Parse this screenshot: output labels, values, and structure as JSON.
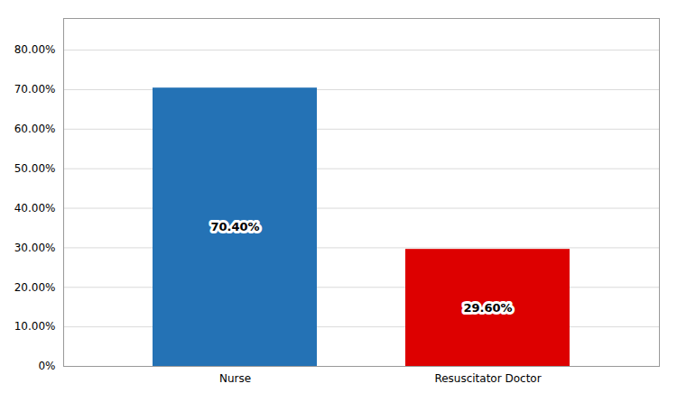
{
  "chart_data": {
    "type": "bar",
    "categories": [
      "Nurse",
      "Resuscitator Doctor"
    ],
    "values": [
      70.4,
      29.6
    ],
    "value_labels": [
      "70.40%",
      "29.60%"
    ],
    "colors": [
      "#2472B5",
      "#DD0000"
    ],
    "ylim": [
      0,
      88
    ],
    "yticks": [
      {
        "value": 0,
        "label": "0%"
      },
      {
        "value": 10,
        "label": "10.00%"
      },
      {
        "value": 20,
        "label": "20.00%"
      },
      {
        "value": 30,
        "label": "30.00%"
      },
      {
        "value": 40,
        "label": "40.00%"
      },
      {
        "value": 50,
        "label": "50.00%"
      },
      {
        "value": 60,
        "label": "60.00%"
      },
      {
        "value": 70,
        "label": "70.00%"
      },
      {
        "value": 80,
        "label": "80.00%"
      }
    ],
    "grid": true,
    "data_labels": true
  }
}
